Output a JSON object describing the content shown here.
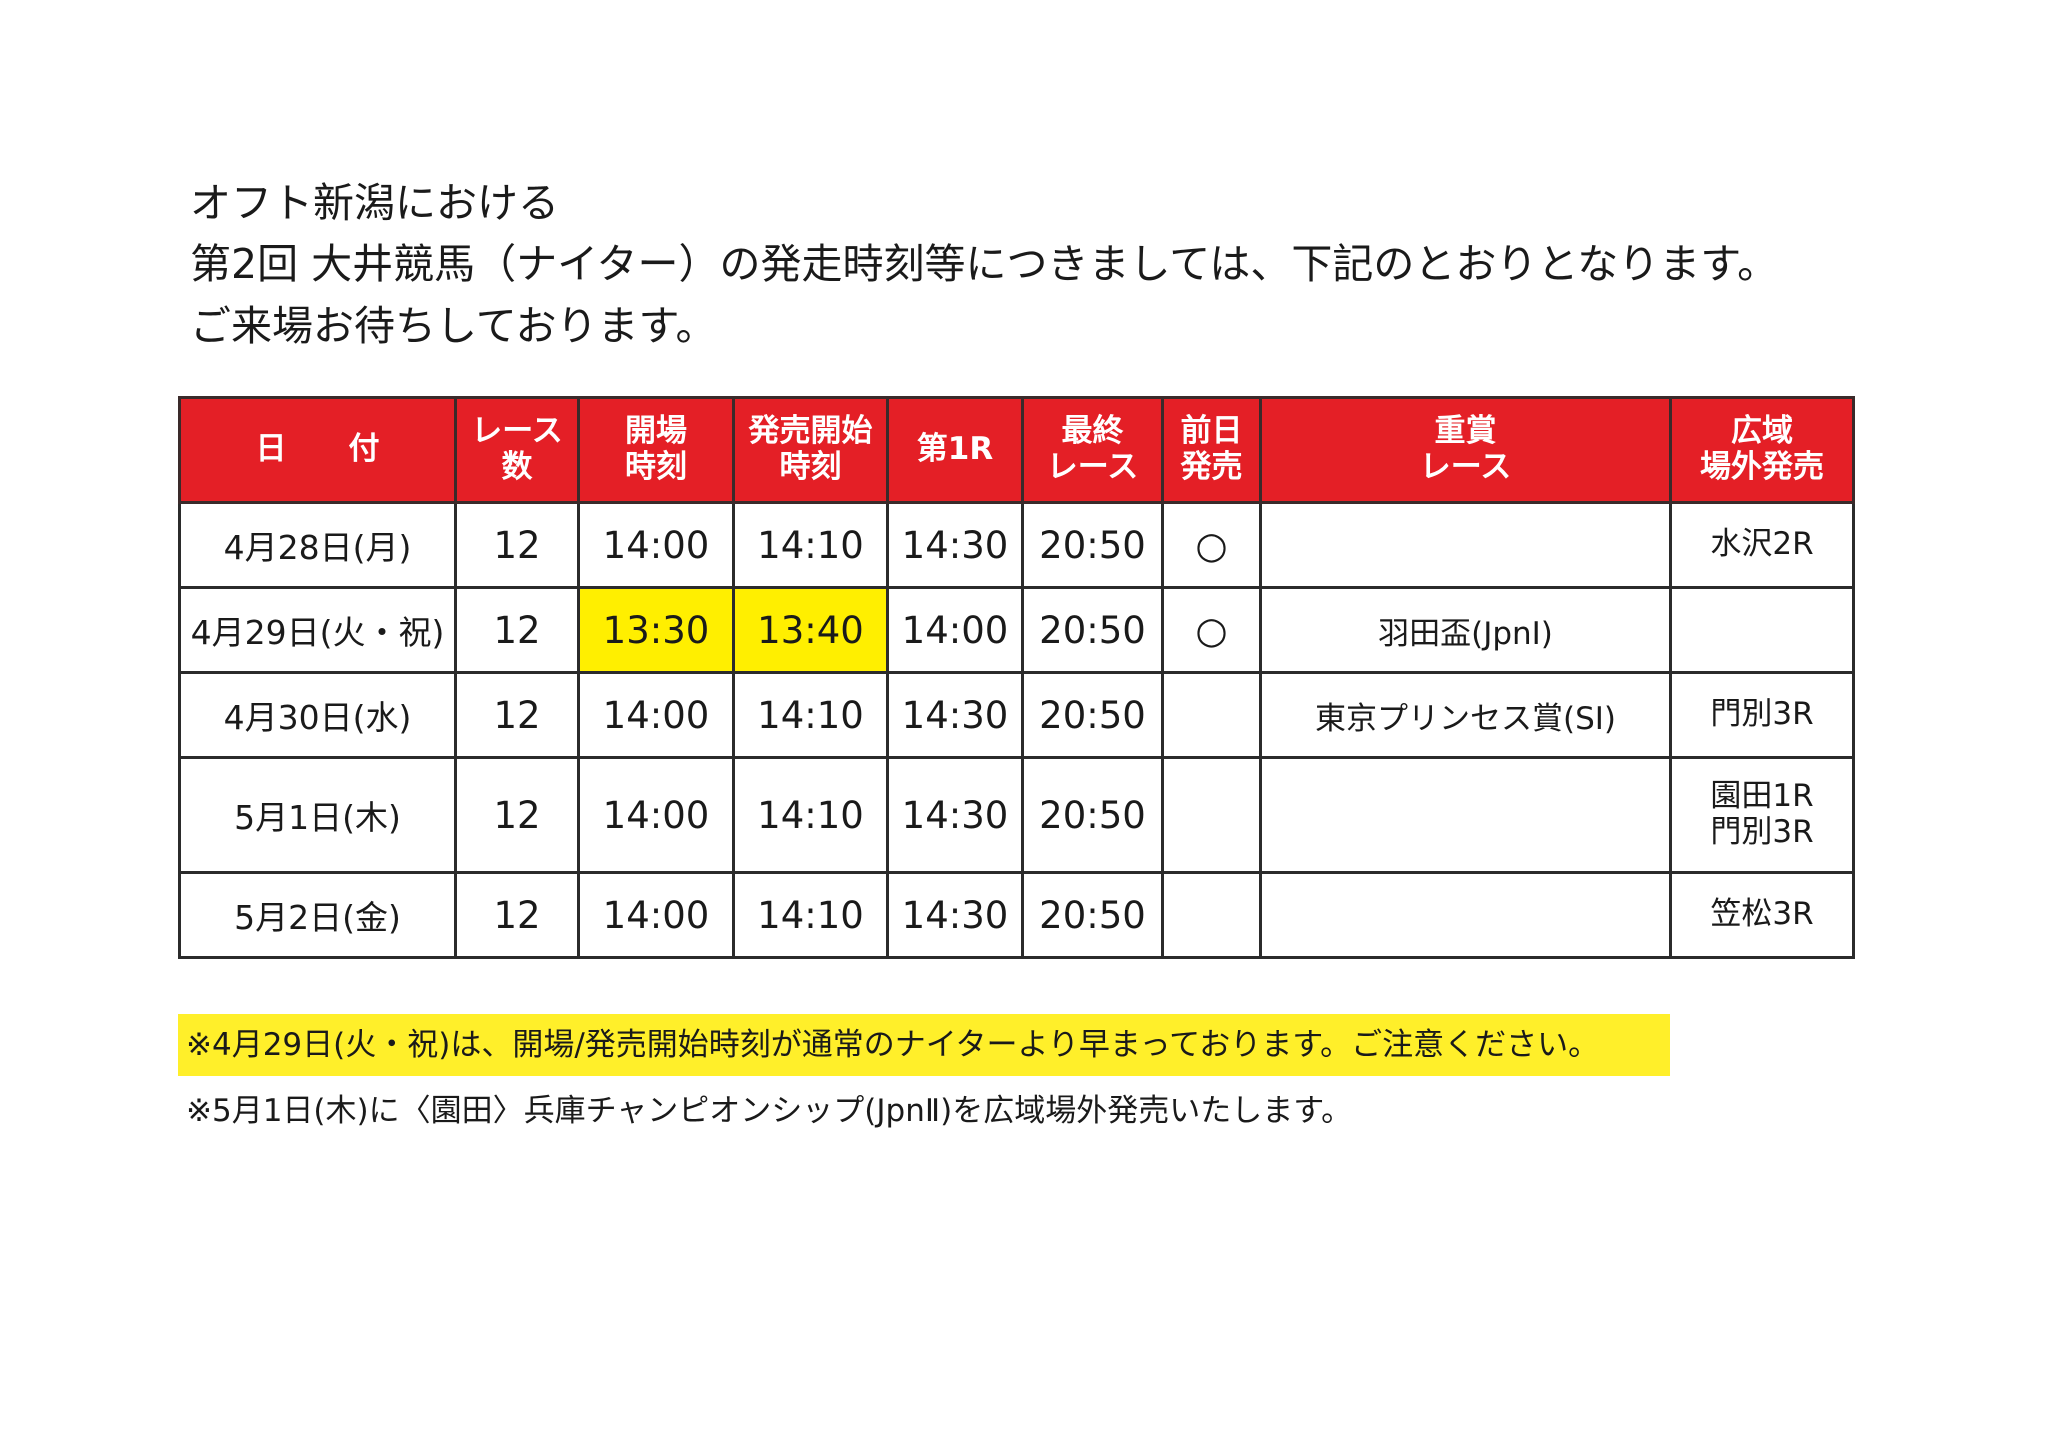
{
  "intro": {
    "line1": "オフト新潟における",
    "line2": "第2回 大井競馬（ナイター）の発走時刻等につきましては、下記のとおりとなります。",
    "line3": "ご来場お待ちしております。"
  },
  "table": {
    "headers": [
      {
        "lines": [
          "日　　付"
        ]
      },
      {
        "lines": [
          "レース",
          "数"
        ]
      },
      {
        "lines": [
          "開場",
          "時刻"
        ]
      },
      {
        "lines": [
          "発売開始",
          "時刻"
        ]
      },
      {
        "lines": [
          "第1R"
        ]
      },
      {
        "lines": [
          "最終",
          "レース"
        ]
      },
      {
        "lines": [
          "前日",
          "発売"
        ]
      },
      {
        "lines": [
          "重賞",
          "レース"
        ]
      },
      {
        "lines": [
          "広域",
          "場外発売"
        ]
      }
    ],
    "rows": [
      {
        "date": "4月28日(月)",
        "races": "12",
        "open": "14:00",
        "sale": "14:10",
        "first": "14:30",
        "last": "20:50",
        "prev": "○",
        "grade": "",
        "wide": [
          "水沢2R"
        ]
      },
      {
        "date": "4月29日(火・祝)",
        "races": "12",
        "open": "13:30",
        "sale": "13:40",
        "first": "14:00",
        "last": "20:50",
        "prev": "○",
        "grade": "羽田盃(JpnⅠ)",
        "wide": []
      },
      {
        "date": "4月30日(水)",
        "races": "12",
        "open": "14:00",
        "sale": "14:10",
        "first": "14:30",
        "last": "20:50",
        "prev": "",
        "grade": "東京プリンセス賞(SⅠ)",
        "wide": [
          "門別3R"
        ]
      },
      {
        "date": "5月1日(木)",
        "races": "12",
        "open": "14:00",
        "sale": "14:10",
        "first": "14:30",
        "last": "20:50",
        "prev": "",
        "grade": "",
        "wide": [
          "園田1R",
          "門別3R"
        ]
      },
      {
        "date": "5月2日(金)",
        "races": "12",
        "open": "14:00",
        "sale": "14:10",
        "first": "14:30",
        "last": "20:50",
        "prev": "",
        "grade": "",
        "wide": [
          "笠松3R"
        ]
      }
    ]
  },
  "notes": {
    "note1": "※4月29日(火・祝)は、開場/発売開始時刻が通常のナイターより早まっております。ご注意ください。",
    "note2": "※5月1日(木)に〈園田〉兵庫チャンピオンシップ(JpnⅡ)を広域場外発売いたします。"
  },
  "colors": {
    "header_bg": "#e41f26",
    "highlight": "#ffef00"
  }
}
